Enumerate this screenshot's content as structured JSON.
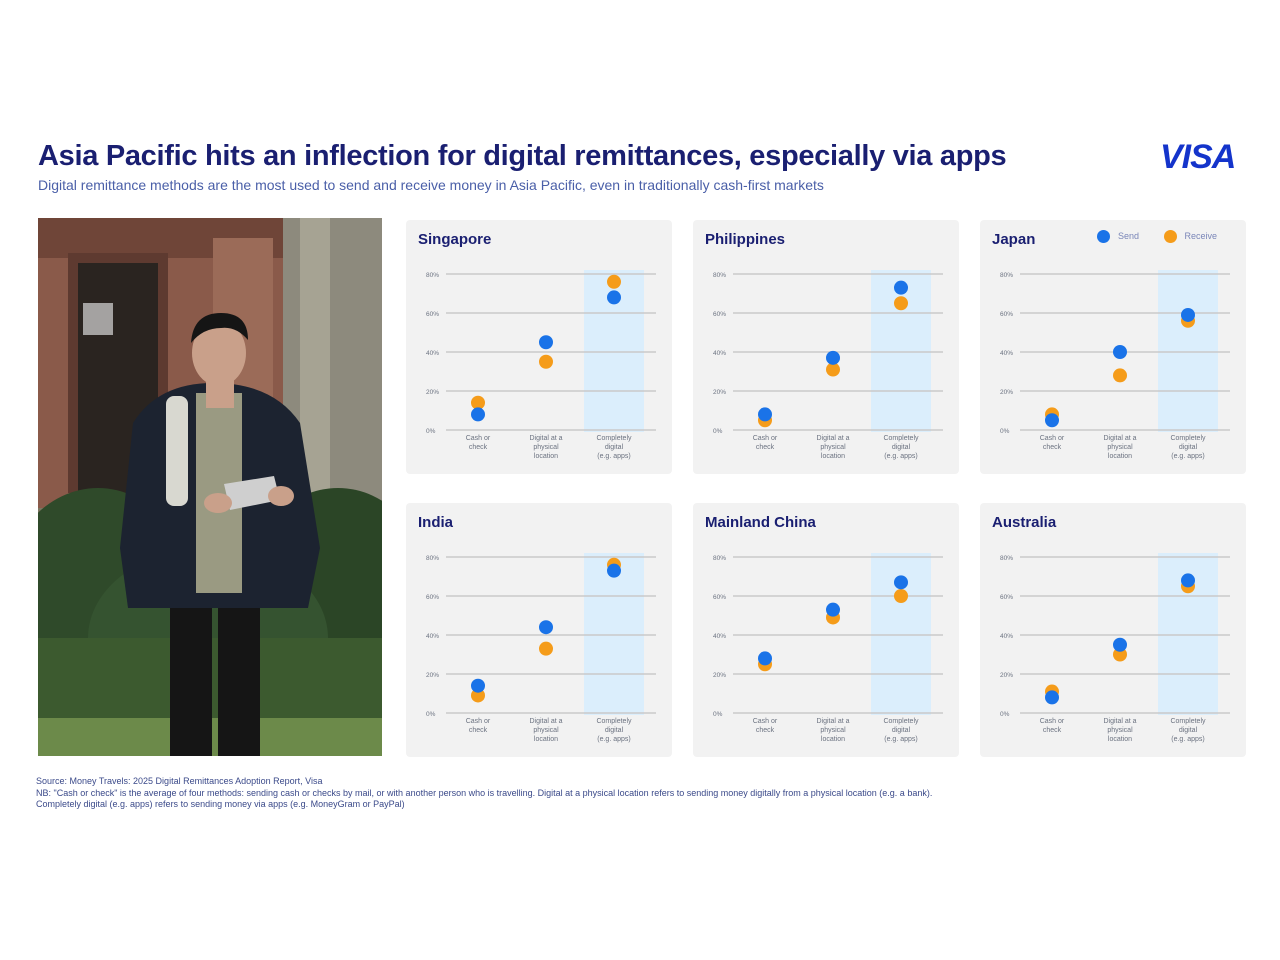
{
  "header": {
    "title": "Asia Pacific hits an inflection for digital remittances, especially via apps",
    "subtitle": "Digital remittance methods are the most used to send and receive money in Asia Pacific, even in traditionally cash-first markets",
    "logo": "VISA"
  },
  "legend": {
    "send_label": "Send",
    "receive_label": "Receive"
  },
  "colors": {
    "send": "#1a73e8",
    "receive": "#f59c1a",
    "highlight": "#dbeefc",
    "gridline": "#c9c9c9",
    "title": "#1a1f71",
    "brand": "#1434cb"
  },
  "chart_data": [
    {
      "type": "scatter",
      "title": "Singapore",
      "categories": [
        "Cash or check",
        "Digital at a physical location",
        "Completely digital (e.g. apps)"
      ],
      "yticks": [
        "0%",
        "20%",
        "40%",
        "60%",
        "80%"
      ],
      "ylim": [
        0,
        80
      ],
      "highlight_category": 2,
      "series": [
        {
          "name": "Send",
          "values": [
            8,
            45,
            68
          ]
        },
        {
          "name": "Receive",
          "values": [
            14,
            35,
            76
          ]
        }
      ]
    },
    {
      "type": "scatter",
      "title": "Philippines",
      "categories": [
        "Cash or check",
        "Digital at a physical location",
        "Completely digital (e.g. apps)"
      ],
      "yticks": [
        "0%",
        "20%",
        "40%",
        "60%",
        "80%"
      ],
      "ylim": [
        0,
        80
      ],
      "highlight_category": 2,
      "series": [
        {
          "name": "Send",
          "values": [
            8,
            37,
            73
          ]
        },
        {
          "name": "Receive",
          "values": [
            5,
            31,
            65
          ]
        }
      ]
    },
    {
      "type": "scatter",
      "title": "Japan",
      "categories": [
        "Cash or check",
        "Digital at a physical location",
        "Completely digital (e.g. apps)"
      ],
      "yticks": [
        "0%",
        "20%",
        "40%",
        "60%",
        "80%"
      ],
      "ylim": [
        0,
        80
      ],
      "highlight_category": 2,
      "series": [
        {
          "name": "Send",
          "values": [
            5,
            40,
            59
          ]
        },
        {
          "name": "Receive",
          "values": [
            8,
            28,
            56
          ]
        }
      ]
    },
    {
      "type": "scatter",
      "title": "India",
      "categories": [
        "Cash or check",
        "Digital at a physical location",
        "Completely digital (e.g. apps)"
      ],
      "yticks": [
        "0%",
        "20%",
        "40%",
        "60%",
        "80%"
      ],
      "ylim": [
        0,
        80
      ],
      "highlight_category": 2,
      "series": [
        {
          "name": "Send",
          "values": [
            14,
            44,
            73
          ]
        },
        {
          "name": "Receive",
          "values": [
            9,
            33,
            76
          ]
        }
      ]
    },
    {
      "type": "scatter",
      "title": "Mainland China",
      "categories": [
        "Cash or check",
        "Digital at a physical location",
        "Completely digital (e.g. apps)"
      ],
      "yticks": [
        "0%",
        "20%",
        "40%",
        "60%",
        "80%"
      ],
      "ylim": [
        0,
        80
      ],
      "highlight_category": 2,
      "series": [
        {
          "name": "Send",
          "values": [
            28,
            53,
            67
          ]
        },
        {
          "name": "Receive",
          "values": [
            25,
            49,
            60
          ]
        }
      ]
    },
    {
      "type": "scatter",
      "title": "Australia",
      "categories": [
        "Cash or check",
        "Digital at a physical location",
        "Completely digital (e.g. apps)"
      ],
      "yticks": [
        "0%",
        "20%",
        "40%",
        "60%",
        "80%"
      ],
      "ylim": [
        0,
        80
      ],
      "highlight_category": 2,
      "series": [
        {
          "name": "Send",
          "values": [
            8,
            35,
            68
          ]
        },
        {
          "name": "Receive",
          "values": [
            11,
            30,
            65
          ]
        }
      ]
    }
  ],
  "footnotes": {
    "source": "Source: Money Travels: 2025 Digital Remittances Adoption Report, Visa",
    "note1": "NB: \"Cash or check\" is the average of four methods: sending cash or checks by mail, or with another person who is travelling. Digital at a physical location refers to sending money digitally from a physical location (e.g. a bank).",
    "note2": "Completely digital (e.g. apps) refers to sending money via apps (e.g. MoneyGram or PayPal)"
  }
}
